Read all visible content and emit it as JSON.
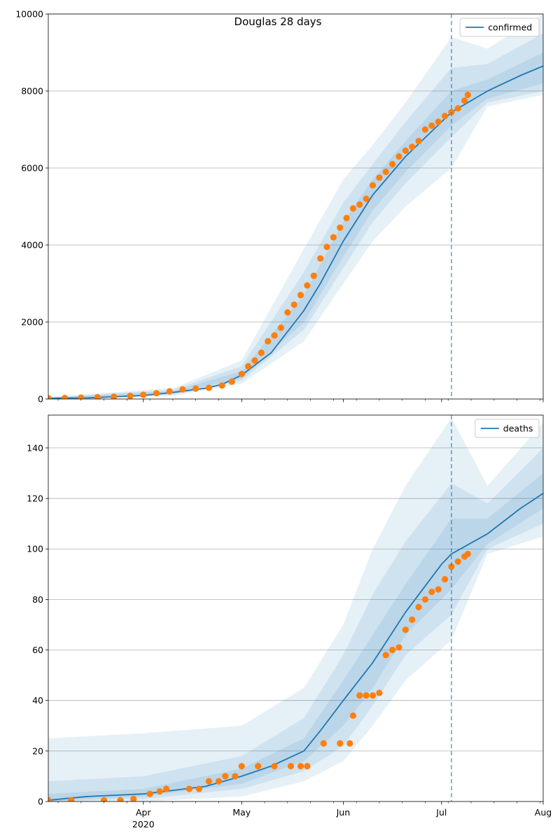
{
  "figure": {
    "title": "Douglas 28 days"
  },
  "chart_data": [
    {
      "type": "line",
      "name": "confirmed-panel",
      "title": "Douglas 28 days",
      "xlabel": "",
      "ylabel": "",
      "ylim": [
        0,
        10000
      ],
      "yticks": [
        0,
        2000,
        4000,
        6000,
        8000,
        10000
      ],
      "ytick_labels": [
        "0",
        "2000",
        "4000",
        "6000",
        "8000",
        "10000"
      ],
      "xlim": [
        "2020-03-03",
        "2020-08-01"
      ],
      "xticks": [
        {
          "date": "2020-04-01",
          "label": "Apr",
          "sublabel": "2020"
        },
        {
          "date": "2020-05-01",
          "label": "May",
          "sublabel": ""
        },
        {
          "date": "2020-06-01",
          "label": "Jun",
          "sublabel": ""
        },
        {
          "date": "2020-07-01",
          "label": "Jul",
          "sublabel": ""
        },
        {
          "date": "2020-08-01",
          "label": "Aug",
          "sublabel": ""
        }
      ],
      "grid": "y",
      "legend": {
        "position": "top-right",
        "entries": [
          "confirmed"
        ]
      },
      "forecast_start": "2020-07-04",
      "colors": {
        "model": "#1f77b4",
        "observed": "#ff7f0e",
        "band": "#1f77b4",
        "vline": "#1f77b4"
      },
      "model": {
        "name": "confirmed",
        "x": [
          "2020-03-03",
          "2020-03-15",
          "2020-04-01",
          "2020-04-10",
          "2020-04-20",
          "2020-04-25",
          "2020-05-01",
          "2020-05-10",
          "2020-05-20",
          "2020-05-25",
          "2020-06-01",
          "2020-06-10",
          "2020-06-20",
          "2020-07-01",
          "2020-07-04",
          "2020-07-15",
          "2020-07-25",
          "2020-08-01"
        ],
        "y": [
          20,
          30,
          90,
          170,
          280,
          380,
          620,
          1200,
          2300,
          3000,
          4100,
          5300,
          6300,
          7200,
          7450,
          8000,
          8400,
          8650
        ]
      },
      "bands": [
        {
          "x": [
            "2020-03-03",
            "2020-04-10",
            "2020-05-01",
            "2020-05-20",
            "2020-06-01",
            "2020-06-10",
            "2020-06-20",
            "2020-07-04",
            "2020-07-15",
            "2020-08-01"
          ],
          "lower": [
            0,
            80,
            400,
            1500,
            3000,
            4100,
            5000,
            6000,
            7600,
            7900
          ],
          "upper": [
            60,
            280,
            1000,
            3900,
            5700,
            6600,
            7700,
            9400,
            9100,
            10000
          ]
        },
        {
          "x": [
            "2020-03-03",
            "2020-04-10",
            "2020-05-01",
            "2020-05-20",
            "2020-06-01",
            "2020-06-10",
            "2020-06-20",
            "2020-07-04",
            "2020-07-15",
            "2020-08-01"
          ],
          "lower": [
            5,
            110,
            480,
            1800,
            3400,
            4600,
            5600,
            6800,
            7700,
            8000
          ],
          "upper": [
            40,
            240,
            850,
            3300,
            5100,
            6100,
            7200,
            8600,
            8700,
            9500
          ]
        },
        {
          "x": [
            "2020-03-03",
            "2020-04-10",
            "2020-05-01",
            "2020-05-20",
            "2020-06-01",
            "2020-06-10",
            "2020-06-20",
            "2020-07-04",
            "2020-07-15",
            "2020-08-01"
          ],
          "lower": [
            10,
            140,
            540,
            2000,
            3700,
            4900,
            5900,
            7100,
            7800,
            8200
          ],
          "upper": [
            30,
            210,
            720,
            2700,
            4600,
            5700,
            6700,
            8000,
            8300,
            9000
          ]
        }
      ],
      "observed": {
        "name": "observed-confirmed",
        "x": [
          "2020-03-03",
          "2020-03-08",
          "2020-03-13",
          "2020-03-18",
          "2020-03-23",
          "2020-03-28",
          "2020-04-01",
          "2020-04-05",
          "2020-04-09",
          "2020-04-13",
          "2020-04-17",
          "2020-04-21",
          "2020-04-25",
          "2020-04-28",
          "2020-05-01",
          "2020-05-03",
          "2020-05-05",
          "2020-05-07",
          "2020-05-09",
          "2020-05-11",
          "2020-05-13",
          "2020-05-15",
          "2020-05-17",
          "2020-05-19",
          "2020-05-21",
          "2020-05-23",
          "2020-05-25",
          "2020-05-27",
          "2020-05-29",
          "2020-05-31",
          "2020-06-02",
          "2020-06-04",
          "2020-06-06",
          "2020-06-08",
          "2020-06-10",
          "2020-06-12",
          "2020-06-14",
          "2020-06-16",
          "2020-06-18",
          "2020-06-20",
          "2020-06-22",
          "2020-06-24",
          "2020-06-26",
          "2020-06-28",
          "2020-06-30",
          "2020-07-02",
          "2020-07-04",
          "2020-07-06",
          "2020-07-08",
          "2020-07-09"
        ],
        "y": [
          20,
          25,
          35,
          45,
          60,
          80,
          110,
          150,
          200,
          250,
          270,
          290,
          350,
          450,
          650,
          850,
          1000,
          1200,
          1500,
          1650,
          1850,
          2250,
          2450,
          2700,
          2950,
          3200,
          3650,
          3950,
          4200,
          4450,
          4700,
          4950,
          5050,
          5200,
          5550,
          5750,
          5900,
          6100,
          6300,
          6450,
          6550,
          6700,
          7000,
          7100,
          7200,
          7350,
          7450,
          7550,
          7750,
          7900
        ]
      }
    },
    {
      "type": "line",
      "name": "deaths-panel",
      "title": "",
      "xlabel": "",
      "ylabel": "",
      "ylim": [
        0,
        153
      ],
      "yticks": [
        0,
        20,
        40,
        60,
        80,
        100,
        120,
        140
      ],
      "ytick_labels": [
        "0",
        "20",
        "40",
        "60",
        "80",
        "100",
        "120",
        "140"
      ],
      "xlim": [
        "2020-03-03",
        "2020-08-01"
      ],
      "xticks": [
        {
          "date": "2020-04-01",
          "label": "Apr",
          "sublabel": "2020"
        },
        {
          "date": "2020-05-01",
          "label": "May",
          "sublabel": ""
        },
        {
          "date": "2020-06-01",
          "label": "Jun",
          "sublabel": ""
        },
        {
          "date": "2020-07-01",
          "label": "Jul",
          "sublabel": ""
        },
        {
          "date": "2020-08-01",
          "label": "Aug",
          "sublabel": ""
        }
      ],
      "grid": "y",
      "legend": {
        "position": "top-right",
        "entries": [
          "deaths"
        ]
      },
      "forecast_start": "2020-07-04",
      "colors": {
        "model": "#1f77b4",
        "observed": "#ff7f0e",
        "band": "#1f77b4",
        "vline": "#1f77b4"
      },
      "model": {
        "name": "deaths",
        "x": [
          "2020-03-03",
          "2020-03-15",
          "2020-04-01",
          "2020-04-20",
          "2020-05-01",
          "2020-05-10",
          "2020-05-20",
          "2020-05-25",
          "2020-06-01",
          "2020-06-10",
          "2020-06-20",
          "2020-07-01",
          "2020-07-04",
          "2020-07-15",
          "2020-07-25",
          "2020-08-01"
        ],
        "y": [
          0.5,
          2,
          3,
          6,
          10,
          14,
          20,
          28,
          40,
          55,
          75,
          94,
          98,
          106,
          116,
          122
        ]
      },
      "bands": [
        {
          "x": [
            "2020-03-03",
            "2020-04-01",
            "2020-05-01",
            "2020-05-20",
            "2020-06-01",
            "2020-06-10",
            "2020-06-20",
            "2020-07-04",
            "2020-07-15",
            "2020-08-01"
          ],
          "lower": [
            0,
            0,
            2,
            8,
            16,
            30,
            48,
            64,
            98,
            105
          ],
          "upper": [
            25,
            27,
            30,
            45,
            70,
            100,
            125,
            152,
            125,
            150
          ]
        },
        {
          "x": [
            "2020-03-03",
            "2020-04-01",
            "2020-05-01",
            "2020-05-20",
            "2020-06-01",
            "2020-06-10",
            "2020-06-20",
            "2020-07-04",
            "2020-07-15",
            "2020-08-01"
          ],
          "lower": [
            0,
            1,
            5,
            12,
            22,
            38,
            58,
            74,
            100,
            110
          ],
          "upper": [
            8,
            10,
            18,
            33,
            58,
            82,
            103,
            126,
            118,
            140
          ]
        },
        {
          "x": [
            "2020-03-03",
            "2020-04-01",
            "2020-05-01",
            "2020-05-20",
            "2020-06-01",
            "2020-06-10",
            "2020-06-20",
            "2020-07-04",
            "2020-07-15",
            "2020-08-01"
          ],
          "lower": [
            0,
            2,
            7,
            16,
            30,
            45,
            66,
            84,
            102,
            116
          ],
          "upper": [
            3,
            5,
            13,
            25,
            48,
            66,
            86,
            112,
            112,
            130
          ]
        }
      ],
      "observed": {
        "name": "observed-deaths",
        "x": [
          "2020-03-03",
          "2020-03-10",
          "2020-03-20",
          "2020-03-25",
          "2020-03-29",
          "2020-04-03",
          "2020-04-06",
          "2020-04-08",
          "2020-04-15",
          "2020-04-18",
          "2020-04-21",
          "2020-04-24",
          "2020-04-26",
          "2020-04-29",
          "2020-05-01",
          "2020-05-06",
          "2020-05-11",
          "2020-05-16",
          "2020-05-19",
          "2020-05-21",
          "2020-05-26",
          "2020-05-31",
          "2020-06-03",
          "2020-06-04",
          "2020-06-06",
          "2020-06-08",
          "2020-06-10",
          "2020-06-12",
          "2020-06-14",
          "2020-06-16",
          "2020-06-18",
          "2020-06-20",
          "2020-06-22",
          "2020-06-24",
          "2020-06-26",
          "2020-06-28",
          "2020-06-30",
          "2020-07-02",
          "2020-07-04",
          "2020-07-06",
          "2020-07-08",
          "2020-07-09"
        ],
        "y": [
          0.5,
          0.5,
          0.5,
          0.5,
          1,
          3,
          4,
          5,
          5,
          5,
          8,
          8,
          10,
          10,
          14,
          14,
          14,
          14,
          14,
          14,
          23,
          23,
          23,
          34,
          42,
          42,
          42,
          43,
          58,
          60,
          61,
          68,
          72,
          77,
          80,
          83,
          84,
          88,
          93,
          95,
          97,
          98
        ]
      }
    }
  ]
}
